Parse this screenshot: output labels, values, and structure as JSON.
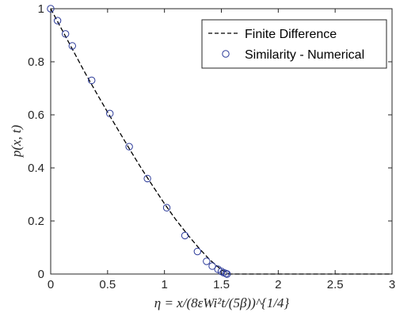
{
  "chart_data": {
    "type": "line",
    "xlabel": "η = x/(8εWi²t/(5β))^{1/4}",
    "ylabel": "p(x, t)",
    "xlim": [
      0,
      3
    ],
    "ylim": [
      0,
      1
    ],
    "x_ticks": [
      "0",
      "0.5",
      "1",
      "1.5",
      "2",
      "2.5",
      "3"
    ],
    "y_ticks": [
      "0",
      "0.2",
      "0.4",
      "0.6",
      "0.8",
      "1"
    ],
    "grid": false,
    "legend_position": "top-right",
    "series": [
      {
        "name": "Finite Difference",
        "style": "dashed-line",
        "color": "#000000",
        "x": [
          0,
          0.1,
          0.2,
          0.3,
          0.4,
          0.5,
          0.6,
          0.7,
          0.8,
          0.9,
          1.0,
          1.1,
          1.2,
          1.3,
          1.4,
          1.5,
          1.57,
          1.6,
          2.0,
          2.5,
          3.0
        ],
        "y": [
          1.0,
          0.92,
          0.84,
          0.76,
          0.684,
          0.61,
          0.538,
          0.466,
          0.396,
          0.33,
          0.265,
          0.205,
          0.15,
          0.099,
          0.053,
          0.016,
          0.0,
          0.0,
          0.0,
          0.0,
          0.0
        ]
      },
      {
        "name": "Similarity - Numerical",
        "style": "open-circles",
        "color": "#2b3a99",
        "x": [
          0.0,
          0.06,
          0.13,
          0.19,
          0.36,
          0.52,
          0.69,
          0.85,
          1.02,
          1.18,
          1.29,
          1.37,
          1.42,
          1.47,
          1.5,
          1.52,
          1.54,
          1.55
        ],
        "y": [
          1.0,
          0.955,
          0.905,
          0.86,
          0.73,
          0.605,
          0.48,
          0.36,
          0.25,
          0.145,
          0.085,
          0.048,
          0.03,
          0.018,
          0.01,
          0.005,
          0.002,
          0.0
        ]
      }
    ]
  }
}
